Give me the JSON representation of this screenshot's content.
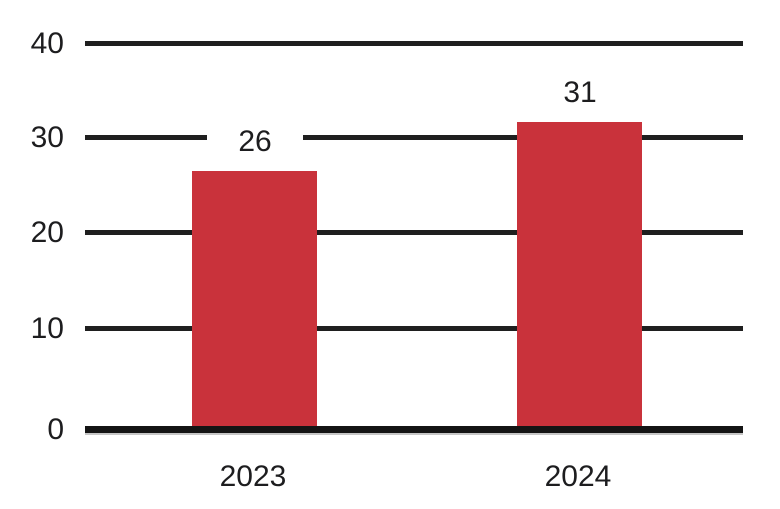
{
  "chart_data": {
    "type": "bar",
    "title": "",
    "xlabel": "",
    "ylabel": "",
    "categories": [
      "2023",
      "2024"
    ],
    "values": [
      26,
      31
    ],
    "data_labels": [
      "26",
      "31"
    ],
    "ytick_values": [
      0,
      10,
      20,
      30,
      40
    ],
    "ytick_labels": [
      "0",
      "10",
      "20",
      "30",
      "40"
    ],
    "ylim": [
      0,
      40
    ],
    "grid": true,
    "legend_position": "none",
    "colors": {
      "bar": "#C9323B",
      "gridline": "#1F1F1F",
      "axis": "#141414",
      "axis_shadow": "#C6C6C6",
      "text": "#1D1D1F",
      "background": "#FFFFFF"
    }
  }
}
